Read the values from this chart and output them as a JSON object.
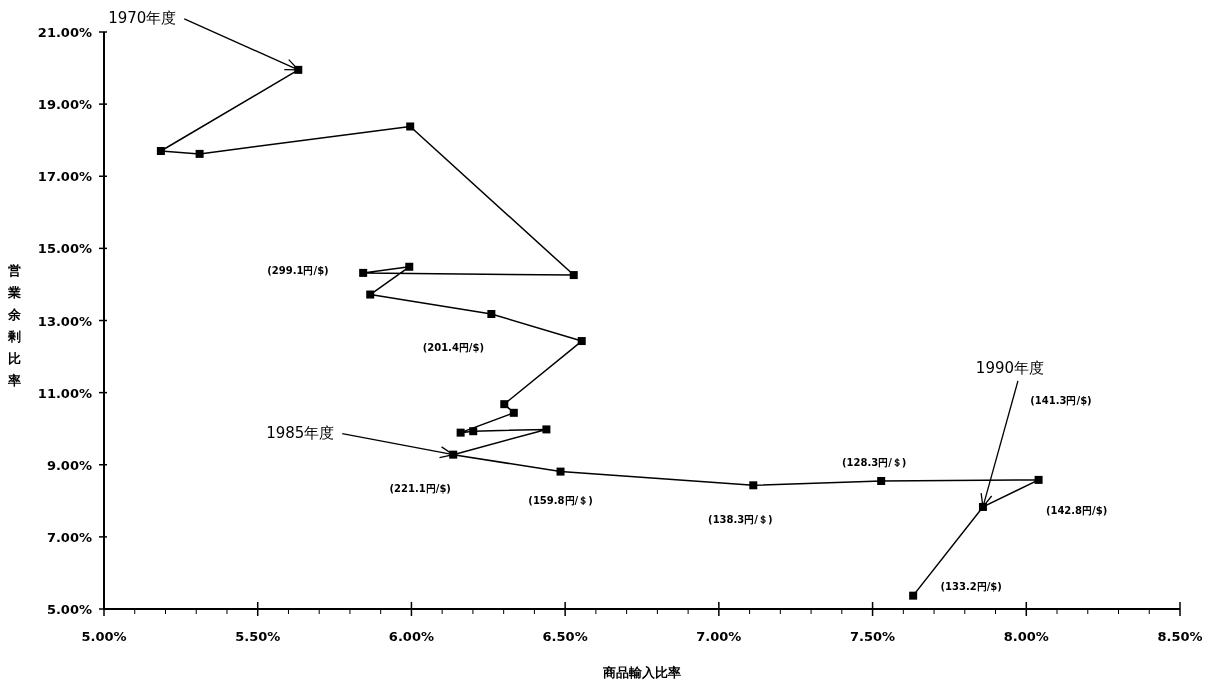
{
  "chart_data": {
    "type": "line",
    "xlabel": "商品輸入比率",
    "ylabel": "営業余剰比率",
    "marker": "square",
    "grid": false,
    "x": [
      5.632,
      5.185,
      5.311,
      5.996,
      6.528,
      5.843,
      5.993,
      5.866,
      6.26,
      6.554,
      6.302,
      6.333,
      6.16,
      6.201,
      6.439,
      6.136,
      6.485,
      7.112,
      7.528,
      8.04,
      7.859,
      7.632
    ],
    "series": [
      {
        "color": "#000000",
        "values": [
          19.95,
          17.7,
          17.62,
          18.38,
          14.26,
          14.32,
          14.49,
          13.72,
          13.18,
          12.43,
          10.68,
          10.44,
          9.89,
          9.93,
          9.98,
          9.28,
          8.81,
          8.43,
          8.55,
          8.58,
          7.83,
          5.37
        ]
      }
    ],
    "xlim": [
      5.0,
      8.5
    ],
    "ylim": [
      5.0,
      21.0
    ],
    "xticks": [
      {
        "value": 5.0,
        "label": "5.00%"
      },
      {
        "value": 5.5,
        "label": "5.50%"
      },
      {
        "value": 6.0,
        "label": "6.00%"
      },
      {
        "value": 6.5,
        "label": "6.50%"
      },
      {
        "value": 7.0,
        "label": "7.00%"
      },
      {
        "value": 7.5,
        "label": "7.50%"
      },
      {
        "value": 8.0,
        "label": "8.00%"
      },
      {
        "value": 8.5,
        "label": "8.50%"
      }
    ],
    "yticks": [
      {
        "value": 5.0,
        "label": "5.00%"
      },
      {
        "value": 7.0,
        "label": "7.00%"
      },
      {
        "value": 9.0,
        "label": "9.00%"
      },
      {
        "value": 11.0,
        "label": "11.00%"
      },
      {
        "value": 13.0,
        "label": "13.00%"
      },
      {
        "value": 15.0,
        "label": "15.00%"
      },
      {
        "value": 17.0,
        "label": "17.00%"
      },
      {
        "value": 19.0,
        "label": "19.00%"
      },
      {
        "value": 21.0,
        "label": "21.00%"
      }
    ],
    "annotations": [
      {
        "text": "1970年度",
        "x": 5.632,
        "y": 19.95
      },
      {
        "text": "1985年度",
        "x": 6.136,
        "y": 9.28
      },
      {
        "text": "1990年度",
        "x": 7.859,
        "y": 7.83
      },
      "(299.1円/$)",
      {
        "text": "(201.4円/$)",
        "x": 6.26,
        "y": 13.18
      },
      {
        "text": "(221.1円/$)",
        "x": 6.136,
        "y": 9.28
      },
      {
        "text": "(159.8円/＄)",
        "x": 6.485,
        "y": 8.81
      },
      {
        "text": "(138.3円/＄)",
        "x": 7.112,
        "y": 8.43
      },
      {
        "text": "(128.3円/＄)",
        "x": 7.528,
        "y": 8.55
      },
      {
        "text": "(142.8円/$)",
        "x": 8.04,
        "y": 8.58
      },
      "(141.3円/$)",
      {
        "text": "(133.2円/$)",
        "x": 7.632,
        "y": 5.37
      }
    ]
  }
}
